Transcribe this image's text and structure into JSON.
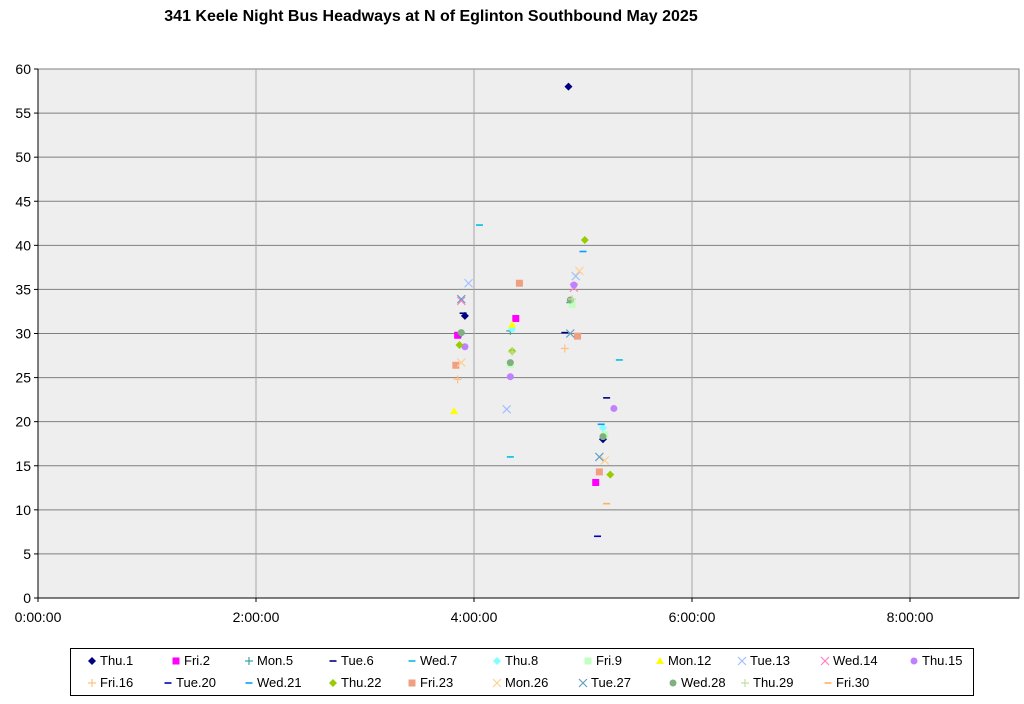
{
  "chart_data": {
    "type": "scatter",
    "title": "341 Keele Night Bus Headways at N of Eglinton Southbound May 2025",
    "xlabel": "",
    "ylabel": "",
    "xlim": [
      "0:00:00",
      "9:00:00"
    ],
    "ylim": [
      0,
      60
    ],
    "x_ticks": [
      "0:00:00",
      "2:00:00",
      "4:00:00",
      "6:00:00",
      "8:00:00"
    ],
    "y_ticks": [
      "0",
      "5",
      "10",
      "15",
      "20",
      "25",
      "30",
      "35",
      "40",
      "45",
      "50",
      "55",
      "60"
    ],
    "grid": true,
    "legend_position": "bottom",
    "series": [
      {
        "name": "Thu.1",
        "color": "#000080",
        "marker": "diamond",
        "points": [
          [
            "3:55:00",
            32
          ],
          [
            "4:52:00",
            58
          ],
          [
            "5:11:00",
            18
          ]
        ]
      },
      {
        "name": "Fri.2",
        "color": "#ff00ff",
        "marker": "square",
        "points": [
          [
            "3:51:00",
            29.8
          ],
          [
            "4:23:00",
            31.7
          ],
          [
            "5:07:00",
            13.1
          ]
        ]
      },
      {
        "name": "Mon.5",
        "color": "#3fa3a3",
        "marker": "plus",
        "points": [
          [
            "3:53:00",
            30
          ],
          [
            "4:20:00",
            30.3
          ],
          [
            "4:53:00",
            33.5
          ]
        ]
      },
      {
        "name": "Tue.6",
        "color": "#000080",
        "marker": "dash",
        "points": [
          [
            "3:54:00",
            32.3
          ],
          [
            "4:50:00",
            30.1
          ],
          [
            "5:13:00",
            22.7
          ]
        ]
      },
      {
        "name": "Wed.7",
        "color": "#00c0e0",
        "marker": "dash",
        "points": [
          [
            "4:03:00",
            42.3
          ],
          [
            "4:20:00",
            16
          ],
          [
            "5:20:00",
            27
          ]
        ]
      },
      {
        "name": "Thu.8",
        "color": "#80ffff",
        "marker": "diamond",
        "points": [
          [
            "4:21:00",
            30.5
          ],
          [
            "5:11:00",
            19.3
          ]
        ]
      },
      {
        "name": "Fri.9",
        "color": "#c0ffc0",
        "marker": "square",
        "points": [
          [
            "4:20:00",
            26.5
          ],
          [
            "4:54:00",
            33.3
          ],
          [
            "5:12:00",
            18.5
          ]
        ]
      },
      {
        "name": "Mon.12",
        "color": "#ffff00",
        "marker": "triangle",
        "points": [
          [
            "3:49:00",
            21.2
          ],
          [
            "4:21:00",
            31
          ]
        ]
      },
      {
        "name": "Tue.13",
        "color": "#a0c0ff",
        "marker": "x",
        "points": [
          [
            "3:57:00",
            35.7
          ],
          [
            "4:18:00",
            21.4
          ],
          [
            "4:56:00",
            36.5
          ]
        ]
      },
      {
        "name": "Wed.14",
        "color": "#ff80c0",
        "marker": "x",
        "points": [
          [
            "3:53:00",
            33.7
          ],
          [
            "4:55:00",
            35.2
          ]
        ]
      },
      {
        "name": "Thu.15",
        "color": "#c080ff",
        "marker": "circle",
        "points": [
          [
            "3:55:00",
            28.5
          ],
          [
            "4:20:00",
            25.1
          ],
          [
            "4:55:00",
            35.5
          ],
          [
            "5:17:00",
            21.5
          ]
        ]
      },
      {
        "name": "Fri.16",
        "color": "#ffc080",
        "marker": "plus",
        "points": [
          [
            "3:51:00",
            24.8
          ],
          [
            "4:50:00",
            28.3
          ]
        ]
      },
      {
        "name": "Tue.20",
        "color": "#0000c0",
        "marker": "dash",
        "points": [
          [
            "5:08:00",
            7
          ]
        ]
      },
      {
        "name": "Wed.21",
        "color": "#00a0ff",
        "marker": "dash",
        "points": [
          [
            "5:10:00",
            19.7
          ],
          [
            "5:00:00",
            39.3
          ]
        ]
      },
      {
        "name": "Thu.22",
        "color": "#99cc00",
        "marker": "diamond",
        "points": [
          [
            "3:52:00",
            28.7
          ],
          [
            "4:21:00",
            28
          ],
          [
            "5:01:00",
            40.6
          ],
          [
            "5:15:00",
            14
          ]
        ]
      },
      {
        "name": "Fri.23",
        "color": "#f0a080",
        "marker": "square",
        "points": [
          [
            "3:50:00",
            26.4
          ],
          [
            "4:25:00",
            35.7
          ],
          [
            "4:57:00",
            29.7
          ],
          [
            "5:09:00",
            14.3
          ]
        ]
      },
      {
        "name": "Mon.26",
        "color": "#ffd090",
        "marker": "x",
        "points": [
          [
            "3:53:00",
            26.7
          ],
          [
            "4:58:00",
            37.1
          ],
          [
            "5:12:00",
            15.6
          ]
        ]
      },
      {
        "name": "Tue.27",
        "color": "#60a0c0",
        "marker": "x",
        "points": [
          [
            "3:53:00",
            33.9
          ],
          [
            "4:53:00",
            30
          ],
          [
            "5:09:00",
            16
          ]
        ]
      },
      {
        "name": "Wed.28",
        "color": "#80b080",
        "marker": "circle",
        "points": [
          [
            "3:53:00",
            30.1
          ],
          [
            "4:20:00",
            26.7
          ],
          [
            "4:53:00",
            33.8
          ],
          [
            "5:11:00",
            18.3
          ]
        ]
      },
      {
        "name": "Thu.29",
        "color": "#c0e0a0",
        "marker": "plus",
        "points": [
          [
            "4:21:00",
            27.9
          ],
          [
            "4:54:00",
            33.9
          ]
        ]
      },
      {
        "name": "Fri.30",
        "color": "#ffb060",
        "marker": "dash",
        "points": [
          [
            "5:13:00",
            10.7
          ]
        ]
      }
    ]
  }
}
